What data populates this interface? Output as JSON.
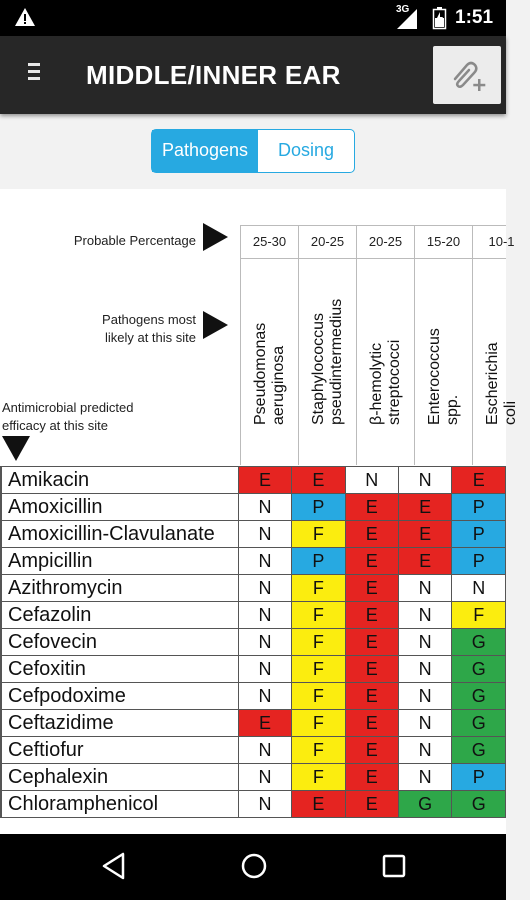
{
  "status_bar": {
    "network": "3G",
    "time": "1:51",
    "icons": [
      "warning-icon",
      "signal-icon",
      "battery-icon"
    ]
  },
  "app_bar": {
    "title": "MIDDLE/INNER EAR",
    "menu_icon": "menu-icon",
    "attach_icon": "attach-add-icon"
  },
  "segmented": {
    "pathogens": "Pathogens",
    "dosing": "Dosing",
    "selected": "Pathogens"
  },
  "labels": {
    "probable_percentage": "Probable Percentage",
    "pathogens_line1": "Pathogens most",
    "pathogens_line2": "likely at this site",
    "efficacy_line1": "Antimicrobial predicted",
    "efficacy_line2": "efficacy at this site"
  },
  "pathogens": [
    {
      "pct": "25-30",
      "name": "Pseudomonas aeruginosa"
    },
    {
      "pct": "20-25",
      "name": "Staphylococcus pseudintermedius"
    },
    {
      "pct": "20-25",
      "name": "β-hemolytic streptococci"
    },
    {
      "pct": "15-20",
      "name": "Enterococcus spp."
    },
    {
      "pct": "10-1",
      "name": "Escherichia coli"
    }
  ],
  "drugs": [
    {
      "name": "Amikacin",
      "cells": [
        "E",
        "E",
        "N",
        "N",
        "E"
      ]
    },
    {
      "name": "Amoxicillin",
      "cells": [
        "N",
        "P",
        "E",
        "E",
        "P"
      ]
    },
    {
      "name": "Amoxicillin-Clavulanate",
      "cells": [
        "N",
        "F",
        "E",
        "E",
        "P"
      ]
    },
    {
      "name": "Ampicillin",
      "cells": [
        "N",
        "P",
        "E",
        "E",
        "P"
      ]
    },
    {
      "name": "Azithromycin",
      "cells": [
        "N",
        "F",
        "E",
        "N",
        "N"
      ]
    },
    {
      "name": "Cefazolin",
      "cells": [
        "N",
        "F",
        "E",
        "N",
        "F"
      ]
    },
    {
      "name": "Cefovecin",
      "cells": [
        "N",
        "F",
        "E",
        "N",
        "G"
      ]
    },
    {
      "name": "Cefoxitin",
      "cells": [
        "N",
        "F",
        "E",
        "N",
        "G"
      ]
    },
    {
      "name": "Cefpodoxime",
      "cells": [
        "N",
        "F",
        "E",
        "N",
        "G"
      ]
    },
    {
      "name": "Ceftazidime",
      "cells": [
        "E",
        "F",
        "E",
        "N",
        "G"
      ]
    },
    {
      "name": "Ceftiofur",
      "cells": [
        "N",
        "F",
        "E",
        "N",
        "G"
      ]
    },
    {
      "name": "Cephalexin",
      "cells": [
        "N",
        "F",
        "E",
        "N",
        "P"
      ]
    },
    {
      "name": "Chloramphenicol",
      "cells": [
        "N",
        "E",
        "E",
        "G",
        "G"
      ]
    }
  ],
  "nav_bar": {
    "icons": [
      "back-icon",
      "home-icon",
      "recents-icon"
    ]
  }
}
